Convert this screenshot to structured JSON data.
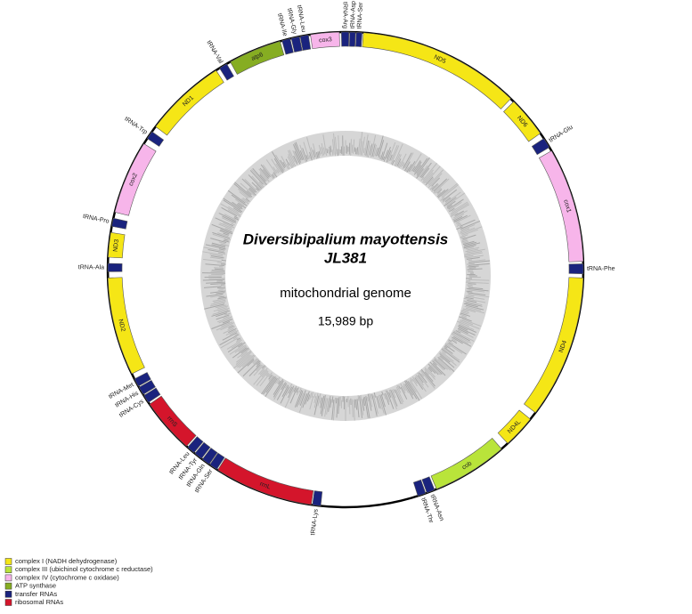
{
  "title": {
    "species": "Diversibipalium mayottensis",
    "strain": "JL381",
    "subtitle": "mitochondrial genome",
    "length": "15,989 bp"
  },
  "genes": [
    {
      "label": "tRNA-Arg",
      "color": "#1a237e"
    },
    {
      "label": "tRNA-Asp",
      "color": "#1a237e"
    },
    {
      "label": "tRNA-Ser",
      "color": "#1a237e"
    },
    {
      "label": "ND5",
      "color": "#f5e616"
    },
    {
      "label": "ND6",
      "color": "#f5e616"
    },
    {
      "label": "tRNA-Glu",
      "color": "#1a237e"
    },
    {
      "label": "cox1",
      "color": "#f7b5ea"
    },
    {
      "label": "tRNA-Phe",
      "color": "#1a237e"
    },
    {
      "label": "ND4",
      "color": "#f5e616"
    },
    {
      "label": "ND4L",
      "color": "#f5e616"
    },
    {
      "label": "cob",
      "color": "#b9e43a"
    },
    {
      "label": "tRNA-Asn",
      "color": "#1a237e"
    },
    {
      "label": "tRNA-Thr",
      "color": "#1a237e"
    },
    {
      "label": "tRNA-Lys",
      "color": "#1a237e"
    },
    {
      "label": "rrnL",
      "color": "#d4152b"
    },
    {
      "label": "tRNA-Ser",
      "color": "#1a237e"
    },
    {
      "label": "tRNA-Gln",
      "color": "#1a237e"
    },
    {
      "label": "tRNA-Tyr",
      "color": "#1a237e"
    },
    {
      "label": "tRNA-Leu",
      "color": "#1a237e"
    },
    {
      "label": "rrnS",
      "color": "#d4152b"
    },
    {
      "label": "tRNA-Cys",
      "color": "#1a237e"
    },
    {
      "label": "tRNA-His",
      "color": "#1a237e"
    },
    {
      "label": "tRNA-Met",
      "color": "#1a237e"
    },
    {
      "label": "ND2",
      "color": "#f5e616"
    },
    {
      "label": "tRNA-Ala",
      "color": "#1a237e"
    },
    {
      "label": "ND3",
      "color": "#f5e616"
    },
    {
      "label": "tRNA-Pro",
      "color": "#1a237e"
    },
    {
      "label": "cox2",
      "color": "#f7b5ea"
    },
    {
      "label": "tRNA-Trp",
      "color": "#1a237e"
    },
    {
      "label": "ND1",
      "color": "#f5e616"
    },
    {
      "label": "tRNA-Val",
      "color": "#1a237e"
    },
    {
      "label": "atp6",
      "color": "#86ad22"
    },
    {
      "label": "tRNA-Ile",
      "color": "#1a237e"
    },
    {
      "label": "tRNA-Gly",
      "color": "#1a237e"
    },
    {
      "label": "tRNA-Leu",
      "color": "#1a237e"
    },
    {
      "label": "cox3",
      "color": "#f7b5ea"
    }
  ],
  "legend": [
    {
      "label": "complex I (NADH dehydrogenase)",
      "color": "#f5e616"
    },
    {
      "label": "complex III (ubichinol cytochrome c reductase)",
      "color": "#b9e43a"
    },
    {
      "label": "complex IV (cytochrome c oxidase)",
      "color": "#f7b5ea"
    },
    {
      "label": "ATP synthase",
      "color": "#86ad22"
    },
    {
      "label": "transfer RNAs",
      "color": "#1a237e"
    },
    {
      "label": "ribosomal RNAs",
      "color": "#d4152b"
    }
  ]
}
